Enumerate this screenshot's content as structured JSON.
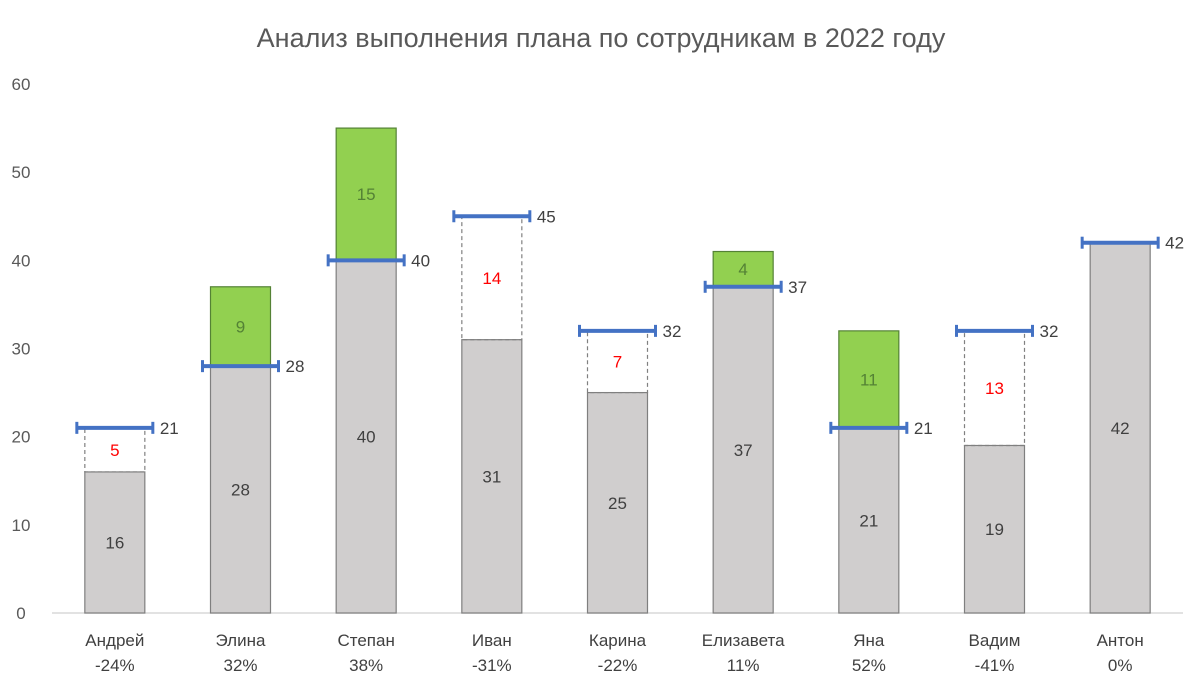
{
  "chart_data": {
    "type": "bar",
    "title": "Анализ выполнения плана по сотрудникам в 2022 году",
    "ylim": [
      0,
      60
    ],
    "yticks": [
      "0",
      "10",
      "20",
      "30",
      "40",
      "50",
      "60"
    ],
    "grid": false,
    "legend": "none",
    "employees": [
      {
        "name": "Андрей",
        "pct": "-24%",
        "fact": 16,
        "plan": 21,
        "over": 0,
        "under": 5
      },
      {
        "name": "Элина",
        "pct": "32%",
        "fact": 37,
        "plan": 28,
        "over": 9,
        "under": 0
      },
      {
        "name": "Степан",
        "pct": "38%",
        "fact": 55,
        "plan": 40,
        "over": 15,
        "under": 0
      },
      {
        "name": "Иван",
        "pct": "-31%",
        "fact": 31,
        "plan": 45,
        "over": 0,
        "under": 14
      },
      {
        "name": "Карина",
        "pct": "-22%",
        "fact": 25,
        "plan": 32,
        "over": 0,
        "under": 7
      },
      {
        "name": "Елизавета",
        "pct": "11%",
        "fact": 41,
        "plan": 37,
        "over": 4,
        "under": 0
      },
      {
        "name": "Яна",
        "pct": "52%",
        "fact": 32,
        "plan": 21,
        "over": 11,
        "under": 0
      },
      {
        "name": "Вадим",
        "pct": "-41%",
        "fact": 19,
        "plan": 32,
        "over": 0,
        "under": 13
      },
      {
        "name": "Антон",
        "pct": "0%",
        "fact": 42,
        "plan": 42,
        "over": 0,
        "under": 0
      }
    ],
    "colors": {
      "base": "#d0cece",
      "base_border": "#7f7f7f",
      "over": "#92d050",
      "over_border": "#548235",
      "over_text": "#548235",
      "under_text": "#ff0000",
      "plan_line": "#4472c4",
      "text": "#404040"
    }
  }
}
